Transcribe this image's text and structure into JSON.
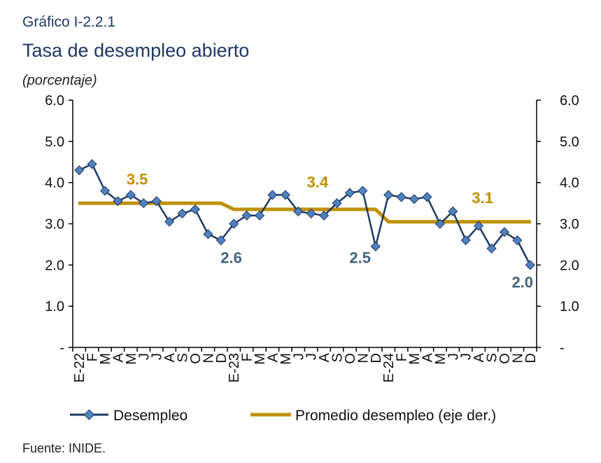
{
  "header": {
    "figure_number": "Gráfico I-2.2.1",
    "title": "Tasa de desempleo abierto",
    "subtitle": "(porcentaje)"
  },
  "source": "Fuente: INIDE.",
  "colors": {
    "desempleo": "#1f3864",
    "marker": "#4f81bd",
    "promedio": "#bf9000",
    "label_blue": "#44647e"
  },
  "chart_data": {
    "type": "line",
    "categories": [
      "E-22",
      "F",
      "M",
      "A",
      "M",
      "J",
      "J",
      "A",
      "S",
      "O",
      "N",
      "D",
      "E-23",
      "F",
      "M",
      "A",
      "M",
      "J",
      "J",
      "A",
      "S",
      "O",
      "N",
      "D",
      "E-24",
      "F",
      "M",
      "A",
      "M",
      "J",
      "J",
      "A",
      "S",
      "O",
      "N",
      "D"
    ],
    "yticks": [
      "-",
      "1.0",
      "2.0",
      "3.0",
      "4.0",
      "5.0",
      "6.0"
    ],
    "ylim": [
      0,
      6
    ],
    "y2lim": [
      0,
      6
    ],
    "grid": false,
    "legend_position": "bottom",
    "series": [
      {
        "name": "Desempleo",
        "axis": "left",
        "values": [
          4.3,
          4.45,
          3.8,
          3.55,
          3.7,
          3.5,
          3.55,
          3.05,
          3.25,
          3.35,
          2.75,
          2.6,
          3.0,
          3.2,
          3.2,
          3.7,
          3.7,
          3.3,
          3.25,
          3.2,
          3.5,
          3.75,
          3.8,
          2.45,
          3.7,
          3.65,
          3.6,
          3.65,
          3.0,
          3.3,
          2.6,
          2.95,
          2.4,
          2.8,
          2.6,
          2.0
        ]
      },
      {
        "name": "Promedio desempleo (eje der.)",
        "axis": "right",
        "values": [
          3.5,
          3.5,
          3.5,
          3.5,
          3.5,
          3.5,
          3.5,
          3.5,
          3.5,
          3.5,
          3.5,
          3.5,
          3.35,
          3.35,
          3.35,
          3.35,
          3.35,
          3.35,
          3.35,
          3.35,
          3.35,
          3.35,
          3.35,
          3.35,
          3.05,
          3.05,
          3.05,
          3.05,
          3.05,
          3.05,
          3.05,
          3.05,
          3.05,
          3.05,
          3.05,
          3.05
        ]
      }
    ],
    "annotations": [
      {
        "text": "3.5",
        "series": "promedio",
        "x": 4.5,
        "y": 3.95
      },
      {
        "text": "3.4",
        "series": "promedio",
        "x": 18.5,
        "y": 3.88
      },
      {
        "text": "3.1",
        "series": "promedio",
        "x": 31.3,
        "y": 3.5
      },
      {
        "text": "2.6",
        "series": "desempleo",
        "x": 11.8,
        "y": 2.05
      },
      {
        "text": "2.5",
        "series": "desempleo",
        "x": 21.8,
        "y": 2.05
      },
      {
        "text": "2.0",
        "series": "desempleo",
        "x": 34.4,
        "y": 1.45
      }
    ]
  }
}
